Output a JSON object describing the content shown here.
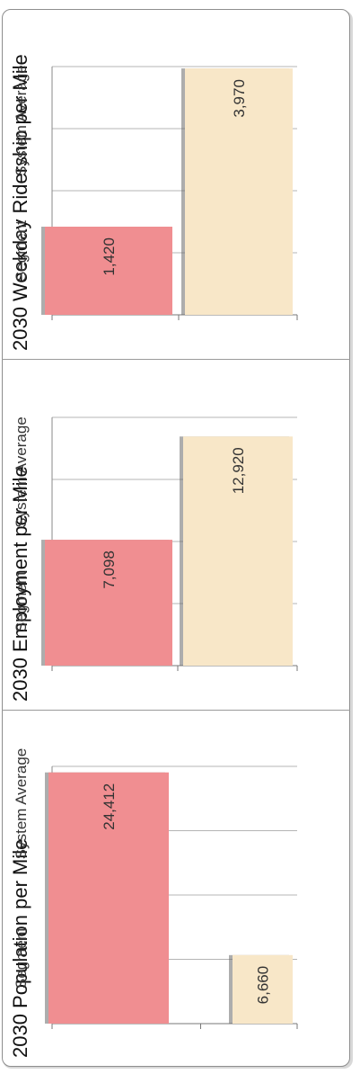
{
  "chart_data": [
    {
      "type": "bar",
      "title": "2030 Population per Mile",
      "categories": [
        "Segment",
        "System Average"
      ],
      "values": [
        24412,
        6660
      ],
      "value_labels": [
        "24,412",
        "6,660"
      ],
      "colors": [
        "#f08e91",
        "#f8e7c8"
      ],
      "ylim": [
        0,
        25000
      ],
      "grid": true
    },
    {
      "type": "bar",
      "title": "2030 Employment per Mile",
      "categories": [
        "Segment",
        "System Average"
      ],
      "values": [
        7098,
        12920
      ],
      "value_labels": [
        "7,098",
        "12,920"
      ],
      "colors": [
        "#f08e91",
        "#f8e7c8"
      ],
      "ylim": [
        0,
        14000
      ],
      "grid": true
    },
    {
      "type": "bar",
      "title": "2030 Weekday Ridership per Mile",
      "categories": [
        "Segment",
        "System Average"
      ],
      "values": [
        1420,
        3970
      ],
      "value_labels": [
        "1,420",
        "3,970"
      ],
      "colors": [
        "#f08e91",
        "#f8e7c8"
      ],
      "ylim": [
        0,
        4000
      ],
      "grid": true
    }
  ]
}
